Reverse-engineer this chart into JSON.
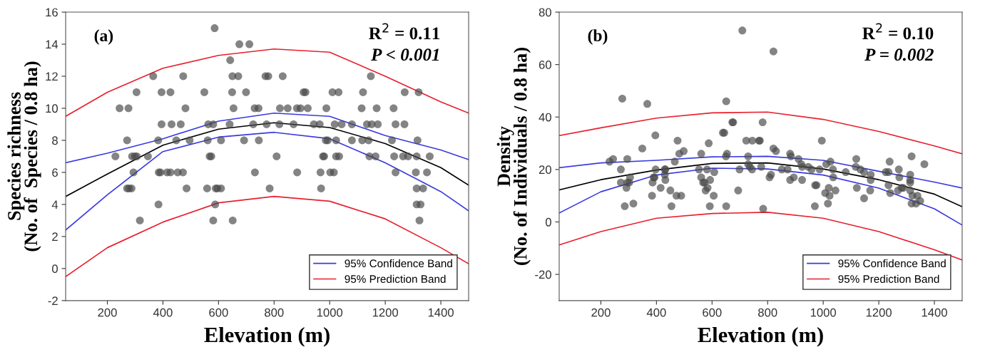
{
  "chart_data": [
    {
      "type": "scatter",
      "xlabel": "Elevation (m)",
      "ylabel": "Species richness\n(No. of  Species / 0.8 ha)",
      "xlim": [
        50,
        1500
      ],
      "ylim": [
        -2,
        16
      ],
      "xticks": [
        200,
        400,
        600,
        800,
        1000,
        1200,
        1400
      ],
      "yticks": [
        -2,
        0,
        2,
        4,
        6,
        8,
        10,
        12,
        14,
        16
      ],
      "grid": false,
      "legend": "bottom right",
      "annotations": [
        "(a)",
        "R$^{2}$ = 0.11",
        "P < 0.001"
      ],
      "series": [
        {
          "marker": "circle",
          "color": "#4a4a4a",
          "x": [
            586,
            675,
            711,
            642,
            365,
            473,
            650,
            671,
            769,
            779,
            831,
            1148,
            305,
            395,
            427,
            549,
            649,
            699,
            906,
            913,
            1010,
            1032,
            1120,
            1270,
            1320,
            244,
            276,
            481,
            654,
            730,
            744,
            821,
            849,
            882,
            895,
            921,
            988,
            1115,
            1169,
            1230,
            395,
            431,
            464,
            563,
            581,
            640,
            725,
            773,
            819,
            870,
            943,
            964,
            1018,
            1043,
            1080,
            1134,
            1151,
            1173,
            1237,
            1269,
            271,
            383,
            448,
            496,
            561,
            609,
            692,
            745,
            986,
            993,
            1023,
            1080,
            1117,
            1140,
            1224,
            1316,
            229,
            289,
            299,
            306,
            346,
            568,
            574,
            809,
            976,
            980,
            1023,
            1034,
            1143,
            1165,
            1232,
            1264,
            1282,
            1313,
            1360,
            294,
            385,
            391,
            415,
            427,
            453,
            472,
            731,
            883,
            967,
            1002,
            1015,
            1237,
            1310,
            1350,
            271,
            278,
            287,
            485,
            559,
            590,
            596,
            609,
            784,
            969,
            1313,
            1336,
            384,
            588,
            1313,
            1327,
            317,
            581,
            651,
            1323
          ],
          "values": [
            15,
            14,
            14,
            13,
            12,
            12,
            12,
            12,
            12,
            12,
            12,
            12,
            11,
            11,
            11,
            11,
            11,
            11,
            11,
            11,
            11,
            11,
            11,
            11,
            11,
            10,
            10,
            10,
            10,
            10,
            10,
            10,
            10,
            10,
            10,
            10,
            10,
            10,
            10,
            10,
            9,
            9,
            9,
            9,
            9,
            9,
            9,
            9,
            9,
            9,
            9,
            9,
            9,
            9,
            9,
            9,
            9,
            9,
            9,
            9,
            8,
            8,
            8,
            8,
            8,
            8,
            8,
            8,
            8,
            8,
            8,
            8,
            8,
            8,
            8,
            8,
            7,
            7,
            7,
            7,
            7,
            7,
            7,
            7,
            7,
            7,
            7,
            7,
            7,
            7,
            7,
            7,
            7,
            7,
            7,
            6,
            6,
            6,
            6,
            6,
            6,
            6,
            6,
            6,
            6,
            6,
            6,
            6,
            6,
            6,
            5,
            5,
            5,
            5,
            5,
            5,
            5,
            5,
            5,
            5,
            5,
            5,
            4,
            4,
            4,
            4,
            3,
            3,
            3,
            3
          ]
        },
        {
          "type": "line",
          "color": "#000000",
          "x": [
            50,
            200,
            400,
            600,
            800,
            1000,
            1200,
            1400,
            1500
          ],
          "values": [
            4.5,
            5.9,
            7.7,
            8.7,
            9.1,
            8.8,
            7.8,
            6.3,
            5.2
          ]
        },
        {
          "type": "line",
          "name": "95% Confidence Band",
          "color": "#3a3ae0",
          "x": [
            50,
            200,
            400,
            600,
            800,
            1000,
            1200,
            1400,
            1500
          ],
          "values": [
            6.6,
            7.2,
            8.1,
            9.2,
            9.7,
            9.5,
            8.3,
            7.4,
            6.8
          ]
        },
        {
          "type": "line",
          "color": "#3a3ae0",
          "x": [
            50,
            200,
            400,
            600,
            800,
            1000,
            1200,
            1400,
            1500
          ],
          "values": [
            2.4,
            4.6,
            7.3,
            8.2,
            8.5,
            8.1,
            6.6,
            4.8,
            3.6
          ]
        },
        {
          "type": "line",
          "name": "95% Prediction Band",
          "color": "#e8202e",
          "x": [
            50,
            200,
            400,
            600,
            800,
            1000,
            1200,
            1400,
            1500
          ],
          "values": [
            9.5,
            11.0,
            12.5,
            13.3,
            13.7,
            13.5,
            12.0,
            10.4,
            9.7
          ]
        },
        {
          "type": "line",
          "color": "#e8202e",
          "x": [
            50,
            200,
            400,
            600,
            800,
            1000,
            1200,
            1400,
            1500
          ],
          "values": [
            -0.5,
            1.3,
            2.9,
            4.1,
            4.5,
            4.2,
            3.1,
            1.3,
            0.3
          ]
        }
      ]
    },
    {
      "type": "scatter",
      "xlabel": "Elevation (m)",
      "ylabel": "Density\n(No. of Individuals / 0.8 ha)",
      "xlim": [
        50,
        1500
      ],
      "ylim": [
        -30,
        80
      ],
      "xticks": [
        200,
        400,
        600,
        800,
        1000,
        1200,
        1400
      ],
      "yticks": [
        -20,
        0,
        20,
        40,
        60,
        80
      ],
      "grid": false,
      "legend": "bottom right",
      "annotations": [
        "(b)",
        "R$^{2}$ = 0.10",
        "P = 0.002"
      ],
      "series": [
        {
          "marker": "circle",
          "color": "#4a4a4a",
          "x": [
            231,
            244,
            272,
            277,
            272,
            295,
            286,
            295,
            302,
            292,
            305,
            317,
            349,
            367,
            396,
            397,
            390,
            393,
            386,
            384,
            415,
            430,
            432,
            430,
            432,
            450,
            454,
            466,
            476,
            482,
            498,
            472,
            489,
            553,
            561,
            561,
            568,
            573,
            577,
            584,
            582,
            588,
            592,
            593,
            606,
            608,
            651,
            673,
            676,
            639,
            644,
            654,
            650,
            730,
            730,
            736,
            744,
            699,
            694,
            651,
            723,
            745,
            769,
            772,
            782,
            777,
            784,
            709,
            821,
            821,
            830,
            812,
            807,
            851,
            872,
            881,
            884,
            881,
            894,
            911,
            921,
            924,
            924,
            946,
            958,
            971,
            976,
            970,
            995,
            987,
            1007,
            1020,
            1023,
            1017,
            1011,
            1026,
            1035,
            1036,
            1044,
            1081,
            1119,
            1121,
            1117,
            1134,
            1147,
            1147,
            1171,
            1171,
            1169,
            1225,
            1235,
            1239,
            1235,
            1241,
            1272,
            1274,
            1269,
            1282,
            1288,
            1313,
            1313,
            1313,
            1313,
            1318,
            1321,
            1318,
            1334,
            1339,
            1349,
            1364
          ],
          "values": [
            23,
            24,
            20,
            47,
            15,
            24,
            6,
            15,
            15,
            13,
            17,
            7,
            28,
            45,
            33,
            20,
            17,
            17,
            15,
            10,
            13,
            20,
            20,
            18,
            16,
            12,
            6,
            23,
            31,
            26,
            27,
            10,
            10,
            20,
            26,
            17,
            15,
            15,
            12,
            13,
            20,
            30,
            6,
            16,
            10,
            19,
            46,
            38,
            38,
            34,
            34,
            26,
            25,
            25,
            22,
            21,
            20,
            20,
            12,
            6,
            31,
            31,
            31,
            31,
            38,
            21,
            5,
            73,
            65,
            28,
            27,
            18,
            17,
            20,
            20,
            26,
            25,
            16,
            17,
            24,
            22,
            21,
            16,
            21,
            20,
            14,
            14,
            6,
            31,
            20,
            11,
            13,
            10,
            7,
            22,
            23,
            20,
            17,
            12,
            19,
            24,
            13,
            21,
            20,
            19,
            9,
            18,
            16,
            12,
            19,
            19,
            23,
            14,
            11,
            20,
            17,
            12,
            13,
            13,
            18,
            15,
            16,
            12,
            25,
            10,
            7,
            7,
            10,
            8,
            22
          ]
        },
        {
          "type": "line",
          "color": "#000000",
          "x": [
            50,
            200,
            400,
            600,
            800,
            1000,
            1200,
            1400,
            1500
          ],
          "values": [
            12.2,
            16.1,
            19.8,
            22.3,
            22.5,
            20.2,
            16.1,
            10.6,
            5.8
          ]
        },
        {
          "type": "line",
          "name": "95% Confidence Band",
          "color": "#3a3ae0",
          "x": [
            50,
            200,
            400,
            600,
            800,
            1000,
            1200,
            1400,
            1500
          ],
          "values": [
            20.7,
            22.5,
            23.5,
            24.8,
            25.0,
            23.5,
            19.3,
            15.2,
            12.9
          ]
        },
        {
          "type": "line",
          "color": "#3a3ae0",
          "x": [
            50,
            200,
            400,
            600,
            800,
            1000,
            1200,
            1400,
            1500
          ],
          "values": [
            3.4,
            11.5,
            17.9,
            20.5,
            20.2,
            17.9,
            12.9,
            5.0,
            -1.2
          ]
        },
        {
          "type": "line",
          "name": "95% Prediction Band",
          "color": "#e8202e",
          "x": [
            50,
            200,
            400,
            600,
            800,
            1000,
            1200,
            1400,
            1500
          ],
          "values": [
            32.9,
            35.9,
            39.6,
            41.6,
            41.9,
            39.1,
            34.5,
            29.0,
            26.0
          ]
        },
        {
          "type": "line",
          "color": "#e8202e",
          "x": [
            50,
            200,
            400,
            600,
            800,
            1000,
            1200,
            1400,
            1500
          ],
          "values": [
            -8.8,
            -3.7,
            1.4,
            3.2,
            3.7,
            1.4,
            -3.7,
            -10.6,
            -14.5
          ]
        }
      ]
    }
  ]
}
